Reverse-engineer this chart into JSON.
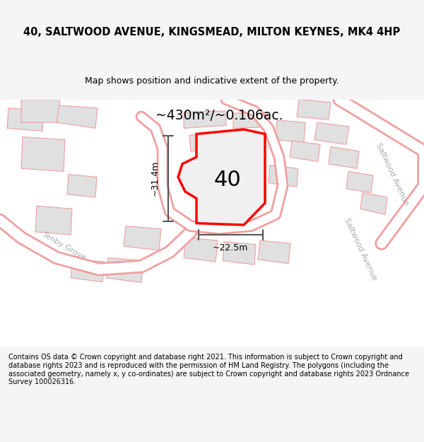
{
  "title": "40, SALTWOOD AVENUE, KINGSMEAD, MILTON KEYNES, MK4 4HP",
  "subtitle": "Map shows position and indicative extent of the property.",
  "footer": "Contains OS data © Crown copyright and database right 2021. This information is subject to Crown copyright and database rights 2023 and is reproduced with the permission of HM Land Registry. The polygons (including the associated geometry, namely x, y co-ordinates) are subject to Crown copyright and database rights 2023 Ordnance Survey 100026316.",
  "bg_color": "#f5f5f5",
  "map_bg": "#ffffff",
  "property_fill": "#ffffff",
  "property_edge": "#ff0000",
  "property_label": "40",
  "area_text": "~430m²/~0.106ac.",
  "dim_width": "~22.5m",
  "dim_height": "~31.4m",
  "street_label_1": "Saltwood Avenue",
  "street_label_2": "Saltwood Avenue",
  "street_label_3": "Tenby Grove",
  "road_color": "#f0a0a0",
  "building_fill": "#e0e0e0",
  "building_edge": "#f0a0a0"
}
